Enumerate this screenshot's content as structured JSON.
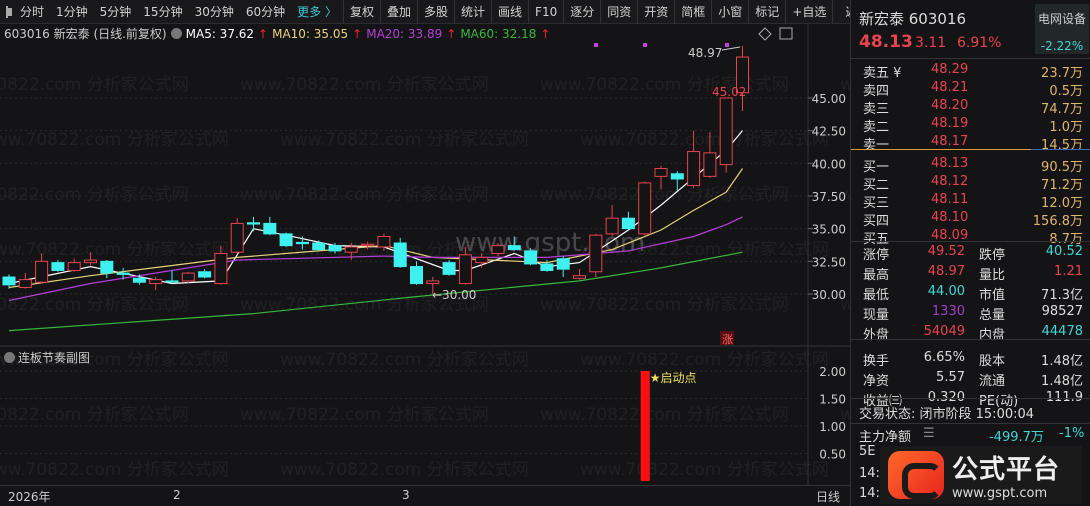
{
  "toolbar": {
    "items": [
      "分时",
      "1分钟",
      "5分钟",
      "15分钟",
      "30分钟",
      "60分钟"
    ],
    "more": "更多 〉",
    "buttons": [
      "复权",
      "叠加",
      "多股",
      "统计",
      "画线",
      "F10",
      "逐分",
      "同资",
      "开资",
      "简框",
      "小窗",
      "标记",
      "+自选",
      "返回"
    ]
  },
  "info": {
    "title": "603016 新宏泰 (日线.前复权)",
    "ma5": "MA5: 37.62",
    "ma10": "MA10: 35.05",
    "ma20": "MA20: 33.89",
    "ma60": "MA60: 32.18",
    "up_arrow": "↑"
  },
  "colors": {
    "up": "#e8434f",
    "down": "#3ff0f0",
    "ma5": "#ffffff",
    "ma10": "#e8d27a",
    "ma20": "#b43fd8",
    "ma60": "#38b83a",
    "bar": "#ff1010"
  },
  "chart_data": [
    {
      "type": "candlestick",
      "ylim": [
        27,
        49.5
      ],
      "yticks": [
        "45.00",
        "42.50",
        "40.00",
        "37.50",
        "35.00",
        "32.50",
        "30.00"
      ],
      "annotations": {
        "high": "48.97",
        "limit": "45.02",
        "low": "←30.00",
        "badge": "涨"
      },
      "ohlc": [
        [
          31.3,
          31.5,
          30.4,
          30.7
        ],
        [
          30.5,
          31.6,
          30.4,
          31.1
        ],
        [
          30.9,
          33.1,
          30.8,
          32.5
        ],
        [
          32.4,
          32.6,
          31.7,
          31.8
        ],
        [
          31.8,
          32.7,
          31.7,
          32.4
        ],
        [
          32.4,
          33.2,
          32.2,
          32.6
        ],
        [
          32.5,
          32.6,
          31.2,
          31.6
        ],
        [
          31.6,
          32.0,
          31.1,
          31.5
        ],
        [
          31.2,
          31.5,
          30.7,
          30.9
        ],
        [
          30.8,
          31.3,
          30.3,
          31.1
        ],
        [
          31.0,
          31.8,
          30.8,
          30.95
        ],
        [
          31.0,
          31.7,
          30.8,
          31.6
        ],
        [
          31.7,
          31.9,
          31.2,
          31.3
        ],
        [
          30.8,
          33.7,
          30.7,
          33.1
        ],
        [
          33.2,
          35.8,
          33.1,
          35.4
        ],
        [
          35.45,
          35.9,
          34.8,
          35.35
        ],
        [
          35.4,
          35.9,
          34.5,
          34.6
        ],
        [
          34.6,
          34.7,
          33.6,
          33.7
        ],
        [
          33.95,
          34.4,
          33.4,
          33.85
        ],
        [
          33.9,
          34.1,
          33.3,
          33.4
        ],
        [
          33.7,
          33.9,
          33.1,
          33.3
        ],
        [
          33.2,
          33.9,
          32.6,
          33.6
        ],
        [
          33.7,
          34.0,
          33.4,
          33.8
        ],
        [
          33.6,
          34.6,
          33.3,
          34.4
        ],
        [
          33.9,
          34.3,
          32.0,
          32.1
        ],
        [
          32.1,
          32.5,
          30.7,
          30.8
        ],
        [
          30.8,
          31.3,
          30.0,
          31.0
        ],
        [
          32.4,
          32.6,
          31.4,
          31.5
        ],
        [
          30.8,
          33.6,
          30.7,
          33.0
        ],
        [
          32.4,
          33.1,
          32.0,
          32.8
        ],
        [
          33.1,
          33.9,
          32.9,
          33.7
        ],
        [
          33.7,
          34.4,
          33.3,
          33.4
        ],
        [
          33.3,
          33.5,
          32.2,
          32.3
        ],
        [
          32.3,
          32.6,
          31.7,
          31.8
        ],
        [
          32.7,
          32.9,
          31.3,
          31.9
        ],
        [
          31.2,
          31.9,
          31.1,
          31.4
        ],
        [
          31.7,
          34.6,
          31.3,
          34.5
        ],
        [
          34.6,
          36.8,
          34.4,
          35.8
        ],
        [
          35.8,
          36.3,
          34.9,
          35.0
        ],
        [
          34.6,
          38.6,
          34.5,
          38.5
        ],
        [
          39.0,
          39.8,
          38.0,
          39.6
        ],
        [
          39.2,
          39.4,
          37.9,
          38.8
        ],
        [
          38.3,
          42.5,
          38.1,
          40.9
        ],
        [
          39.0,
          42.4,
          38.9,
          40.8
        ],
        [
          39.9,
          45.02,
          39.3,
          45.0
        ],
        [
          45.4,
          48.97,
          44.0,
          48.13
        ]
      ],
      "ma": {
        "MA5": [
          [
            0,
            30.8
          ],
          [
            5,
            32.1
          ],
          [
            10,
            30.8
          ],
          [
            13,
            31.0
          ],
          [
            15,
            35.0
          ],
          [
            17,
            34.5
          ],
          [
            20,
            33.7
          ],
          [
            23,
            33.6
          ],
          [
            27,
            31.8
          ],
          [
            28,
            31.8
          ],
          [
            31,
            33.1
          ],
          [
            33,
            32.1
          ],
          [
            35,
            32.4
          ],
          [
            38,
            34.9
          ],
          [
            40,
            36.8
          ],
          [
            42,
            38.9
          ],
          [
            44,
            41.0
          ],
          [
            45,
            42.5
          ]
        ],
        "MA10": [
          [
            0,
            30.5
          ],
          [
            5,
            31.4
          ],
          [
            14,
            32.8
          ],
          [
            23,
            33.7
          ],
          [
            26,
            32.8
          ],
          [
            33,
            32.4
          ],
          [
            37,
            33.4
          ],
          [
            40,
            34.9
          ],
          [
            42,
            36.4
          ],
          [
            44,
            37.8
          ],
          [
            45,
            39.6
          ]
        ],
        "MA20": [
          [
            0,
            29.5
          ],
          [
            5,
            30.8
          ],
          [
            14,
            32.6
          ],
          [
            23,
            32.9
          ],
          [
            26,
            32.8
          ],
          [
            33,
            32.8
          ],
          [
            38,
            33.3
          ],
          [
            42,
            34.4
          ],
          [
            44,
            35.3
          ],
          [
            45,
            35.9
          ]
        ],
        "MA60": [
          [
            0,
            27.2
          ],
          [
            15,
            28.5
          ],
          [
            25,
            29.8
          ],
          [
            35,
            31.0
          ],
          [
            40,
            32.0
          ],
          [
            45,
            33.2
          ]
        ]
      }
    },
    {
      "type": "bar",
      "title": "连板节奏副图",
      "ylim": [
        0,
        2.1
      ],
      "yticks": [
        "2.00",
        "1.50",
        "1.00",
        "0.50"
      ],
      "bars": [
        [
          39,
          2.0
        ]
      ],
      "annotation": "★启动点"
    }
  ],
  "date_axis": {
    "labels": [
      "2026年",
      "2",
      "3"
    ],
    "period": "日线"
  },
  "quote": {
    "name_code": "新宏泰 603016",
    "sector": "电网设备",
    "sector_change": "-2.22%",
    "price": "48.13",
    "change": "3.11",
    "pct": "6.91%"
  },
  "order_book": [
    {
      "label": "卖五 ¥",
      "price": "48.29",
      "vol": "23.7万"
    },
    {
      "label": "卖四",
      "price": "48.21",
      "vol": "0.5万"
    },
    {
      "label": "卖三",
      "price": "48.20",
      "vol": "74.7万"
    },
    {
      "label": "卖二",
      "price": "48.19",
      "vol": "1.0万"
    },
    {
      "label": "卖一",
      "price": "48.17",
      "vol": "14.5万"
    },
    {
      "label": "买一",
      "price": "48.13",
      "vol": "90.5万"
    },
    {
      "label": "买二",
      "price": "48.12",
      "vol": "71.2万"
    },
    {
      "label": "买三",
      "price": "48.11",
      "vol": "12.0万"
    },
    {
      "label": "买四",
      "price": "48.10",
      "vol": "156.8万"
    },
    {
      "label": "买五",
      "price": "48.09",
      "vol": "8.7万"
    }
  ],
  "stats": [
    [
      "涨停",
      "49.52",
      "跌停",
      "40.52"
    ],
    [
      "最高",
      "48.97",
      "量比",
      "1.21"
    ],
    [
      "最低",
      "44.00",
      "市值",
      "71.3亿"
    ],
    [
      "现量",
      "1330",
      "总量",
      "98527"
    ],
    [
      "外盘",
      "54049",
      "内盘",
      "44478"
    ],
    [
      "换手",
      "6.65%",
      "股本",
      "1.48亿"
    ],
    [
      "净资",
      "5.57",
      "流通",
      "1.48亿"
    ],
    [
      "收益㈢",
      "0.320",
      "PE(动)",
      "111.9"
    ]
  ],
  "status": "交易状态: 闭市阶段 15:00:04",
  "main_net": {
    "label": "主力净额",
    "value": "-499.7万",
    "pct": "-1%"
  },
  "ticks": [
    "5E",
    "14:56",
    "14:57"
  ],
  "watermark": "www.70822.com 分析家公式网",
  "overlay": {
    "site": "www.gspt.com",
    "logo_text": "公式平台",
    "logo_url": "www.gspt.com"
  }
}
